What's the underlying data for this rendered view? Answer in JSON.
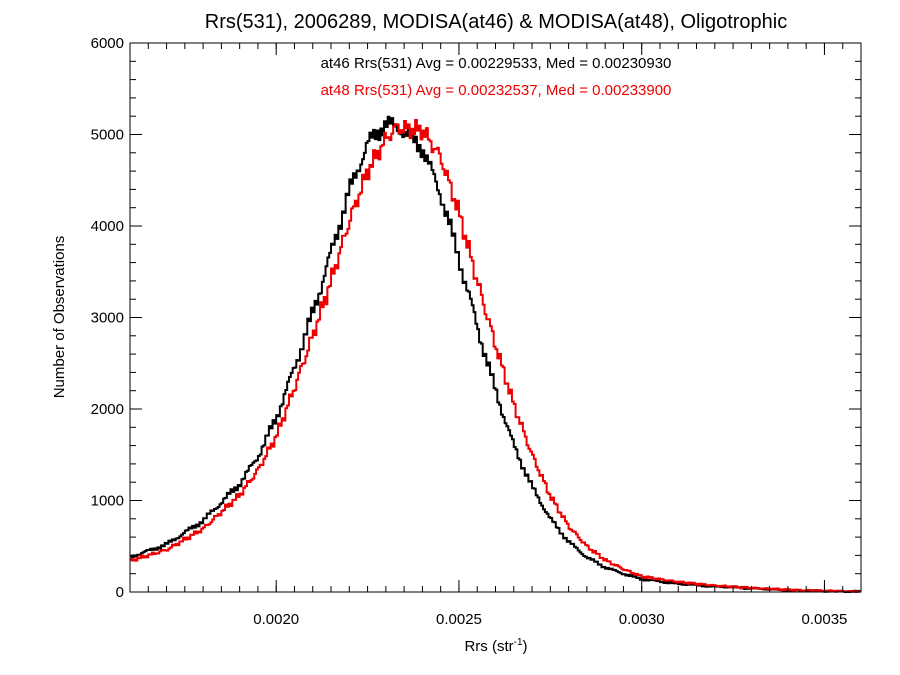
{
  "chart_data": {
    "type": "line",
    "step": true,
    "title": "Rrs(531), 2006289, MODISA(at46) & MODISA(at48), Oligotrophic",
    "xlabel_main": "Rrs (str",
    "xlabel_sup": "-1",
    "xlabel_end": ")",
    "ylabel": "Number of Observations",
    "xlim": [
      0.0016,
      0.0036
    ],
    "ylim": [
      0,
      6000
    ],
    "xticks": [
      0.002,
      0.0025,
      0.003,
      0.0035
    ],
    "xtick_labels": [
      "0.0020",
      "0.0025",
      "0.0030",
      "0.0035"
    ],
    "yticks": [
      0,
      1000,
      2000,
      3000,
      4000,
      5000,
      6000
    ],
    "ytick_labels": [
      "0",
      "1000",
      "2000",
      "3000",
      "4000",
      "5000",
      "6000"
    ],
    "grid": false,
    "annotations": [
      "at46 Rrs(531) Avg = 0.00229533, Med = 0.00230930",
      "at48 Rrs(531) Avg = 0.00232537, Med = 0.00233900"
    ],
    "colors": {
      "at46": "#000000",
      "at48": "#ee0000"
    },
    "series": [
      {
        "key": "at46",
        "color": "#000000",
        "x": [
          0.0016,
          0.0017,
          0.0018,
          0.0019,
          0.00195,
          0.002,
          0.00205,
          0.0021,
          0.00215,
          0.0022,
          0.00225,
          0.0023,
          0.00233,
          0.00236,
          0.0024,
          0.00245,
          0.0025,
          0.00255,
          0.0026,
          0.00265,
          0.0027,
          0.00275,
          0.0028,
          0.00285,
          0.0029,
          0.00295,
          0.003,
          0.0031,
          0.0032,
          0.0033,
          0.0034,
          0.0035,
          0.0036
        ],
        "y": [
          380,
          520,
          780,
          1180,
          1480,
          1900,
          2450,
          3050,
          3700,
          4380,
          4900,
          5120,
          5080,
          5000,
          4850,
          4350,
          3650,
          2900,
          2200,
          1600,
          1150,
          800,
          550,
          380,
          270,
          200,
          140,
          90,
          60,
          40,
          20,
          10,
          5
        ]
      },
      {
        "key": "at48",
        "color": "#ee0000",
        "x": [
          0.0016,
          0.0017,
          0.0018,
          0.0019,
          0.00195,
          0.002,
          0.00205,
          0.0021,
          0.00215,
          0.0022,
          0.00225,
          0.0023,
          0.00233,
          0.00236,
          0.0024,
          0.00245,
          0.0025,
          0.00255,
          0.0026,
          0.00265,
          0.0027,
          0.00275,
          0.0028,
          0.00285,
          0.0029,
          0.00295,
          0.003,
          0.0031,
          0.0032,
          0.0033,
          0.0034,
          0.0035,
          0.0036
        ],
        "y": [
          340,
          460,
          690,
          1060,
          1330,
          1700,
          2230,
          2800,
          3400,
          4050,
          4600,
          4950,
          5080,
          5060,
          5050,
          4750,
          4150,
          3400,
          2700,
          2050,
          1500,
          1050,
          720,
          500,
          350,
          250,
          170,
          110,
          70,
          45,
          25,
          12,
          5
        ]
      }
    ]
  }
}
